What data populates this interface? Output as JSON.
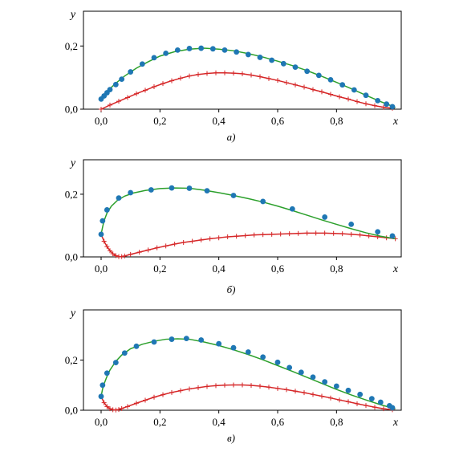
{
  "chart_data": [
    {
      "type": "line",
      "panel_label": "а)",
      "xlabel": "x",
      "ylabel": "y",
      "xlim": [
        -0.06,
        1.02
      ],
      "ylim": [
        0.0,
        0.31
      ],
      "xticks": [
        {
          "v": 0.0,
          "label": "0,0"
        },
        {
          "v": 0.2,
          "label": "0,2"
        },
        {
          "v": 0.4,
          "label": "0,4"
        },
        {
          "v": 0.6,
          "label": "0,6"
        },
        {
          "v": 0.8,
          "label": "0,8"
        }
      ],
      "yticks": [
        {
          "v": 0.0,
          "label": "0,0"
        },
        {
          "v": 0.2,
          "label": "0,2"
        }
      ],
      "colors": {
        "upper_line": "#2ca02c",
        "upper_marker": "#1f77b4",
        "lower": "#d62728"
      },
      "series": [
        {
          "role": "upper_line",
          "x": [
            0.0,
            0.01,
            0.02,
            0.03,
            0.05,
            0.08,
            0.12,
            0.16,
            0.2,
            0.25,
            0.3,
            0.35,
            0.4,
            0.45,
            0.5,
            0.55,
            0.6,
            0.65,
            0.7,
            0.75,
            0.8,
            0.85,
            0.9,
            0.95,
            0.98,
            1.0
          ],
          "y": [
            0.032,
            0.045,
            0.055,
            0.065,
            0.082,
            0.105,
            0.13,
            0.15,
            0.168,
            0.182,
            0.19,
            0.193,
            0.19,
            0.185,
            0.176,
            0.165,
            0.152,
            0.138,
            0.122,
            0.104,
            0.085,
            0.065,
            0.044,
            0.024,
            0.013,
            0.005
          ]
        },
        {
          "role": "upper_markers",
          "x": [
            0.0,
            0.01,
            0.02,
            0.03,
            0.05,
            0.07,
            0.1,
            0.14,
            0.18,
            0.22,
            0.26,
            0.3,
            0.34,
            0.38,
            0.42,
            0.46,
            0.5,
            0.54,
            0.58,
            0.62,
            0.66,
            0.7,
            0.74,
            0.78,
            0.82,
            0.86,
            0.9,
            0.94,
            0.97,
            0.99
          ],
          "y": [
            0.032,
            0.042,
            0.052,
            0.062,
            0.078,
            0.095,
            0.118,
            0.143,
            0.163,
            0.177,
            0.187,
            0.192,
            0.193,
            0.191,
            0.187,
            0.181,
            0.173,
            0.164,
            0.155,
            0.144,
            0.133,
            0.12,
            0.107,
            0.093,
            0.077,
            0.061,
            0.044,
            0.027,
            0.016,
            0.008
          ]
        },
        {
          "role": "lower",
          "x": [
            0.0,
            0.03,
            0.06,
            0.09,
            0.12,
            0.15,
            0.18,
            0.21,
            0.24,
            0.27,
            0.3,
            0.33,
            0.36,
            0.39,
            0.42,
            0.45,
            0.48,
            0.51,
            0.54,
            0.57,
            0.6,
            0.63,
            0.66,
            0.69,
            0.72,
            0.75,
            0.78,
            0.81,
            0.84,
            0.87,
            0.9,
            0.93,
            0.96,
            0.99
          ],
          "y": [
            0.0,
            0.013,
            0.025,
            0.037,
            0.049,
            0.06,
            0.071,
            0.081,
            0.09,
            0.098,
            0.105,
            0.11,
            0.113,
            0.115,
            0.115,
            0.114,
            0.112,
            0.108,
            0.103,
            0.097,
            0.091,
            0.084,
            0.077,
            0.07,
            0.062,
            0.055,
            0.047,
            0.039,
            0.032,
            0.024,
            0.017,
            0.011,
            0.006,
            0.003
          ]
        }
      ]
    },
    {
      "type": "line",
      "panel_label": "б)",
      "xlabel": "x",
      "ylabel": "y",
      "xlim": [
        -0.06,
        1.02
      ],
      "ylim": [
        0.0,
        0.31
      ],
      "xticks": [
        {
          "v": 0.0,
          "label": "0,0"
        },
        {
          "v": 0.2,
          "label": "0,2"
        },
        {
          "v": 0.4,
          "label": "0,4"
        },
        {
          "v": 0.6,
          "label": "0,6"
        },
        {
          "v": 0.8,
          "label": "0,8"
        }
      ],
      "yticks": [
        {
          "v": 0.0,
          "label": "0,0"
        },
        {
          "v": 0.2,
          "label": "0,2"
        }
      ],
      "colors": {
        "upper_line": "#2ca02c",
        "upper_marker": "#1f77b4",
        "lower": "#d62728"
      },
      "series": [
        {
          "role": "upper_line",
          "x": [
            0.0,
            0.005,
            0.01,
            0.02,
            0.035,
            0.055,
            0.08,
            0.11,
            0.15,
            0.2,
            0.25,
            0.3,
            0.35,
            0.4,
            0.45,
            0.5,
            0.55,
            0.6,
            0.65,
            0.7,
            0.75,
            0.8,
            0.85,
            0.9,
            0.95,
            1.0
          ],
          "y": [
            0.072,
            0.095,
            0.115,
            0.14,
            0.162,
            0.18,
            0.194,
            0.204,
            0.212,
            0.218,
            0.22,
            0.219,
            0.213,
            0.205,
            0.196,
            0.186,
            0.175,
            0.162,
            0.148,
            0.133,
            0.118,
            0.104,
            0.09,
            0.077,
            0.066,
            0.058
          ]
        },
        {
          "role": "upper_markers",
          "x": [
            0.0,
            0.005,
            0.02,
            0.06,
            0.1,
            0.17,
            0.24,
            0.3,
            0.36,
            0.45,
            0.55,
            0.65,
            0.76,
            0.85,
            0.94,
            0.99
          ],
          "y": [
            0.072,
            0.115,
            0.15,
            0.188,
            0.205,
            0.214,
            0.22,
            0.219,
            0.211,
            0.196,
            0.177,
            0.153,
            0.127,
            0.104,
            0.08,
            0.067
          ]
        },
        {
          "role": "lower",
          "x": [
            0.0,
            0.01,
            0.02,
            0.03,
            0.04,
            0.05,
            0.06,
            0.07,
            0.08,
            0.1,
            0.13,
            0.16,
            0.19,
            0.22,
            0.25,
            0.28,
            0.31,
            0.34,
            0.37,
            0.4,
            0.43,
            0.46,
            0.49,
            0.52,
            0.55,
            0.58,
            0.61,
            0.64,
            0.67,
            0.7,
            0.73,
            0.76,
            0.79,
            0.82,
            0.85,
            0.88,
            0.91,
            0.94,
            0.97,
            1.0
          ],
          "y": [
            0.072,
            0.05,
            0.033,
            0.02,
            0.01,
            0.004,
            0.001,
            0.001,
            0.003,
            0.008,
            0.015,
            0.022,
            0.029,
            0.035,
            0.041,
            0.046,
            0.05,
            0.054,
            0.058,
            0.061,
            0.064,
            0.066,
            0.068,
            0.07,
            0.071,
            0.072,
            0.073,
            0.074,
            0.075,
            0.076,
            0.076,
            0.076,
            0.075,
            0.074,
            0.072,
            0.07,
            0.067,
            0.064,
            0.061,
            0.058
          ]
        }
      ]
    },
    {
      "type": "line",
      "panel_label": "в)",
      "xlabel": "x",
      "ylabel": "y",
      "xlim": [
        -0.06,
        1.02
      ],
      "ylim": [
        0.0,
        0.4
      ],
      "xticks": [
        {
          "v": 0.0,
          "label": "0,0"
        },
        {
          "v": 0.2,
          "label": "0,2"
        },
        {
          "v": 0.4,
          "label": "0,4"
        },
        {
          "v": 0.6,
          "label": "0,6"
        },
        {
          "v": 0.8,
          "label": "0,8"
        }
      ],
      "yticks": [
        {
          "v": 0.0,
          "label": "0,0"
        },
        {
          "v": 0.2,
          "label": "0,2"
        }
      ],
      "colors": {
        "upper_line": "#2ca02c",
        "upper_marker": "#1f77b4",
        "lower": "#d62728"
      },
      "series": [
        {
          "role": "upper_line",
          "x": [
            0.0,
            0.005,
            0.01,
            0.02,
            0.03,
            0.05,
            0.07,
            0.1,
            0.14,
            0.18,
            0.22,
            0.26,
            0.3,
            0.35,
            0.4,
            0.45,
            0.5,
            0.55,
            0.6,
            0.65,
            0.7,
            0.75,
            0.8,
            0.85,
            0.9,
            0.95,
            0.98,
            1.0
          ],
          "y": [
            0.055,
            0.085,
            0.105,
            0.135,
            0.16,
            0.195,
            0.22,
            0.245,
            0.263,
            0.275,
            0.283,
            0.285,
            0.283,
            0.272,
            0.258,
            0.241,
            0.222,
            0.201,
            0.178,
            0.155,
            0.131,
            0.107,
            0.083,
            0.061,
            0.041,
            0.022,
            0.012,
            0.005
          ]
        },
        {
          "role": "upper_markers",
          "x": [
            0.0,
            0.005,
            0.02,
            0.05,
            0.08,
            0.12,
            0.18,
            0.24,
            0.29,
            0.34,
            0.4,
            0.45,
            0.5,
            0.55,
            0.6,
            0.64,
            0.68,
            0.72,
            0.76,
            0.8,
            0.84,
            0.88,
            0.92,
            0.95,
            0.98,
            0.99
          ],
          "y": [
            0.055,
            0.1,
            0.148,
            0.19,
            0.228,
            0.255,
            0.272,
            0.283,
            0.286,
            0.28,
            0.265,
            0.249,
            0.232,
            0.212,
            0.191,
            0.17,
            0.151,
            0.132,
            0.113,
            0.096,
            0.079,
            0.063,
            0.046,
            0.032,
            0.018,
            0.01
          ]
        },
        {
          "role": "lower",
          "x": [
            0.0,
            0.01,
            0.02,
            0.03,
            0.04,
            0.05,
            0.06,
            0.07,
            0.09,
            0.12,
            0.15,
            0.18,
            0.21,
            0.24,
            0.27,
            0.3,
            0.33,
            0.36,
            0.39,
            0.42,
            0.45,
            0.48,
            0.51,
            0.54,
            0.57,
            0.6,
            0.63,
            0.66,
            0.69,
            0.72,
            0.75,
            0.78,
            0.81,
            0.84,
            0.87,
            0.9,
            0.93,
            0.96,
            0.99
          ],
          "y": [
            0.055,
            0.03,
            0.015,
            0.006,
            0.002,
            0.001,
            0.003,
            0.007,
            0.015,
            0.028,
            0.04,
            0.052,
            0.062,
            0.071,
            0.078,
            0.085,
            0.09,
            0.095,
            0.098,
            0.1,
            0.101,
            0.101,
            0.099,
            0.096,
            0.092,
            0.087,
            0.082,
            0.076,
            0.07,
            0.063,
            0.056,
            0.049,
            0.041,
            0.034,
            0.026,
            0.019,
            0.012,
            0.006,
            0.002
          ]
        }
      ]
    }
  ]
}
